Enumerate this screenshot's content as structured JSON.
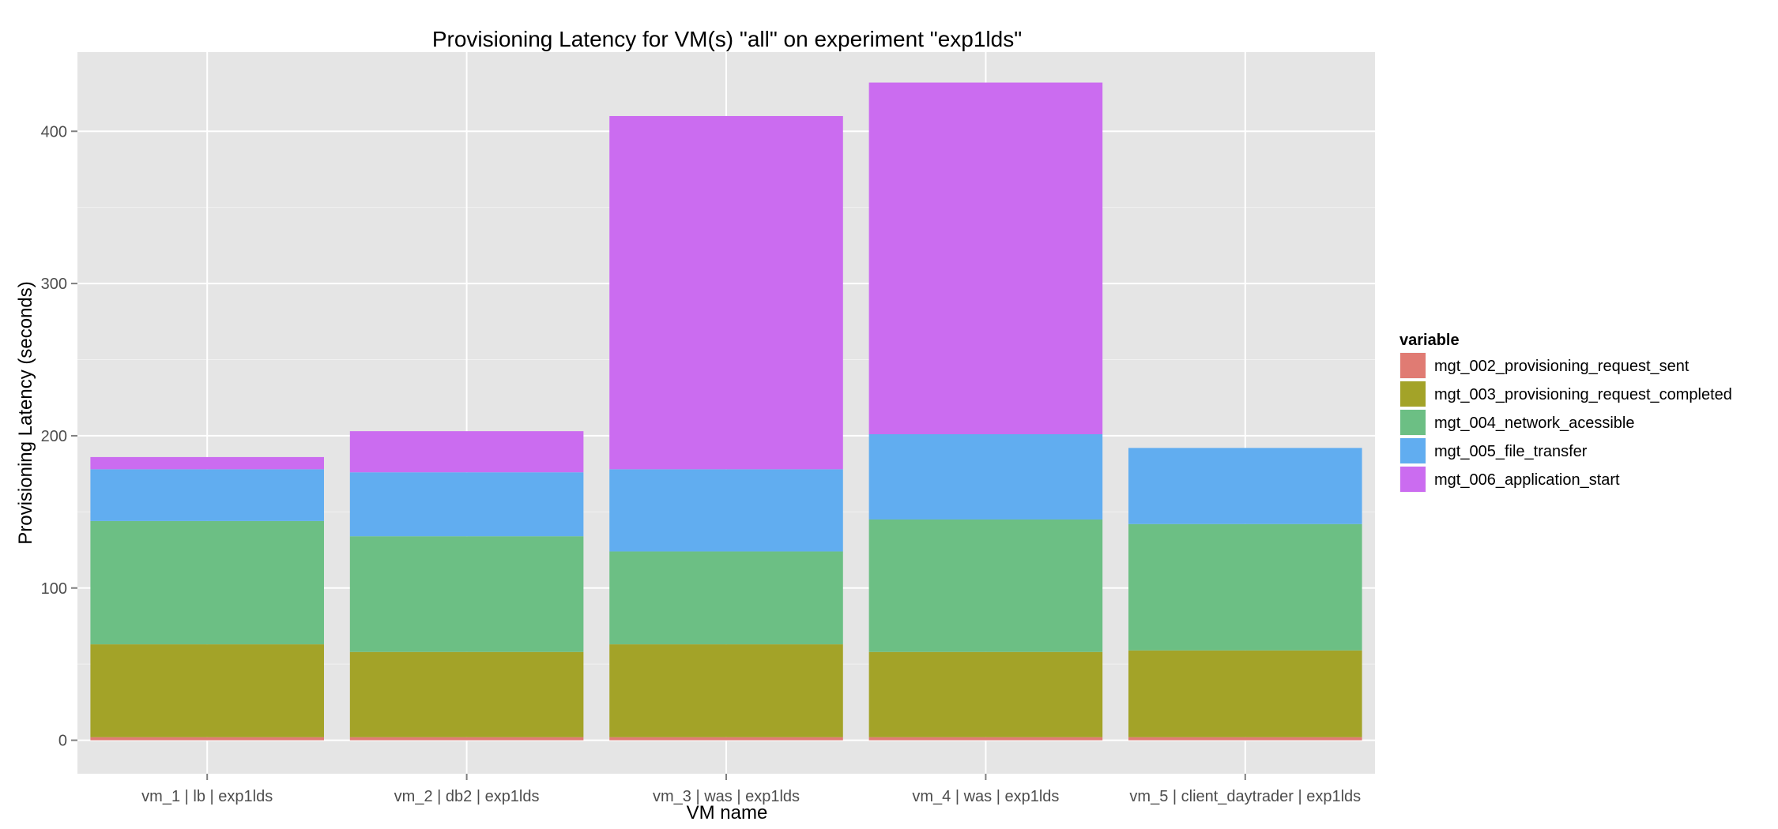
{
  "chart_data": {
    "type": "bar",
    "stacked": true,
    "title": "Provisioning Latency for VM(s) \"all\" on experiment \"exp1lds\"",
    "xlabel": "VM name",
    "ylabel": "Provisioning Latency (seconds)",
    "ylim": [
      -22,
      452
    ],
    "yticks": [
      0,
      100,
      200,
      300,
      400
    ],
    "grid": true,
    "categories": [
      "vm_1 | lb | exp1lds",
      "vm_2 | db2 | exp1lds",
      "vm_3 | was | exp1lds",
      "vm_4 | was | exp1lds",
      "vm_5 | client_daytrader | exp1lds"
    ],
    "legend": {
      "title": "variable",
      "position": "right"
    },
    "series": [
      {
        "name": "mgt_002_provisioning_request_sent",
        "color": "#e07b73",
        "values": [
          2,
          2,
          2,
          2,
          2
        ]
      },
      {
        "name": "mgt_003_provisioning_request_completed",
        "color": "#a3a328",
        "values": [
          61,
          56,
          61,
          56,
          57
        ]
      },
      {
        "name": "mgt_004_network_acessible",
        "color": "#6cbf84",
        "values": [
          81,
          76,
          61,
          87,
          83
        ]
      },
      {
        "name": "mgt_005_file_transfer",
        "color": "#61adf0",
        "values": [
          34,
          42,
          54,
          56,
          50
        ]
      },
      {
        "name": "mgt_006_application_start",
        "color": "#cb6cf0",
        "values": [
          8,
          27,
          232,
          231,
          0
        ]
      }
    ]
  }
}
